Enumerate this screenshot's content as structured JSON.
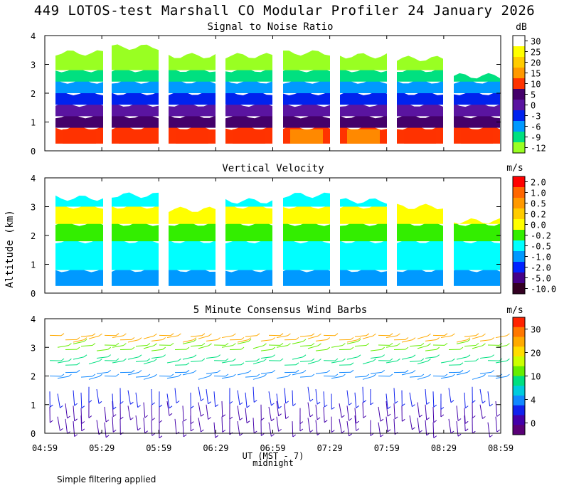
{
  "figure": {
    "title": "449 LOTOS-test Marshall CO Modular Profiler 24 January 2026",
    "footnote": "Simple filtering applied",
    "y_axis_label": "Altitude (km)",
    "x_axis_label": "UT (MST - 7)",
    "x_axis_note": "midnight"
  },
  "chart_data": [
    {
      "type": "heatmap",
      "title": "Signal to Noise Ratio",
      "unit": "dB",
      "ylim": [
        0,
        4
      ],
      "yticks": [
        0,
        1,
        2,
        3,
        4
      ],
      "x_time_range": [
        "04:59",
        "08:59"
      ],
      "xticks": [
        "04:59",
        "05:29",
        "05:59",
        "06:29",
        "06:59",
        "07:29",
        "07:59",
        "08:29",
        "08:59"
      ],
      "colorbar": {
        "labels": [
          "30",
          "25",
          "20",
          "15",
          "10",
          "5",
          "0",
          "-3",
          "-6",
          "-9",
          "-12"
        ],
        "colors": [
          "#ffffff",
          "#ffff00",
          "#ffcc00",
          "#ff9900",
          "#ff3300",
          "#44006a",
          "#5a14a0",
          "#0022ee",
          "#0099ff",
          "#00e080",
          "#99ff22"
        ]
      },
      "data_top_km": [
        3.4,
        3.6,
        3.3,
        3.3,
        3.4,
        3.3,
        3.2,
        2.6
      ],
      "bands_km": [
        {
          "max_km": 0.8,
          "level": "10"
        },
        {
          "max_km": 1.2,
          "level": "5"
        },
        {
          "max_km": 1.6,
          "level": "0"
        },
        {
          "max_km": 2.0,
          "level": "-3"
        },
        {
          "max_km": 2.4,
          "level": "-6"
        },
        {
          "max_km": 2.8,
          "level": "-9"
        },
        {
          "max_km": 4.0,
          "level": "-12"
        }
      ]
    },
    {
      "type": "heatmap",
      "title": "Vertical Velocity",
      "unit": "m/s",
      "ylim": [
        0,
        4
      ],
      "yticks": [
        0,
        1,
        2,
        3,
        4
      ],
      "x_time_range": [
        "04:59",
        "08:59"
      ],
      "xticks": [
        "04:59",
        "05:29",
        "05:59",
        "06:29",
        "06:59",
        "07:29",
        "07:59",
        "08:29",
        "08:59"
      ],
      "colorbar": {
        "labels": [
          "2.0",
          "1.0",
          "0.5",
          "0.2",
          "0.0",
          "-0.2",
          "-0.5",
          "-1.0",
          "-2.0",
          "-5.0",
          "-10.0"
        ],
        "colors": [
          "#ff0000",
          "#ff6600",
          "#ff9900",
          "#ffcc00",
          "#ffff00",
          "#33ee00",
          "#00ffff",
          "#0099ff",
          "#0022ff",
          "#440088",
          "#330022"
        ]
      },
      "data_top_km": [
        3.3,
        3.4,
        2.9,
        3.2,
        3.4,
        3.2,
        3.0,
        2.5
      ],
      "bands_km": [
        {
          "max_km": 0.8,
          "level": "-1.0"
        },
        {
          "max_km": 1.8,
          "level": "-0.5"
        },
        {
          "max_km": 2.4,
          "level": "-0.2"
        },
        {
          "max_km": 3.0,
          "level": "0.0"
        },
        {
          "max_km": 4.0,
          "level": "-0.5"
        }
      ]
    },
    {
      "type": "scatter",
      "title": "5 Minute Consensus Wind Barbs",
      "unit": "m/s",
      "ylim": [
        0,
        4
      ],
      "yticks": [
        0,
        1,
        2,
        3,
        4
      ],
      "x_time_range": [
        "04:59",
        "08:59"
      ],
      "xticks": [
        "04:59",
        "05:29",
        "05:59",
        "06:29",
        "06:59",
        "07:29",
        "07:59",
        "08:29",
        "08:59"
      ],
      "colorbar": {
        "labels": [
          "30",
          "20",
          "10",
          "4",
          "0"
        ],
        "colors": [
          "#ff2200",
          "#ff7700",
          "#ffaa00",
          "#ffdd00",
          "#ccff00",
          "#66ee00",
          "#00e080",
          "#00ccdd",
          "#1188ff",
          "#1122ee",
          "#4400aa",
          "#5a0077"
        ]
      },
      "wind_levels": [
        {
          "alt_km": 0.5,
          "speed": 2
        },
        {
          "alt_km": 1.0,
          "speed": 4
        },
        {
          "alt_km": 1.5,
          "speed": 6
        },
        {
          "alt_km": 2.0,
          "speed": 9
        },
        {
          "alt_km": 2.5,
          "speed": 14
        },
        {
          "alt_km": 3.0,
          "speed": 18
        },
        {
          "alt_km": 3.3,
          "speed": 28
        }
      ]
    }
  ]
}
